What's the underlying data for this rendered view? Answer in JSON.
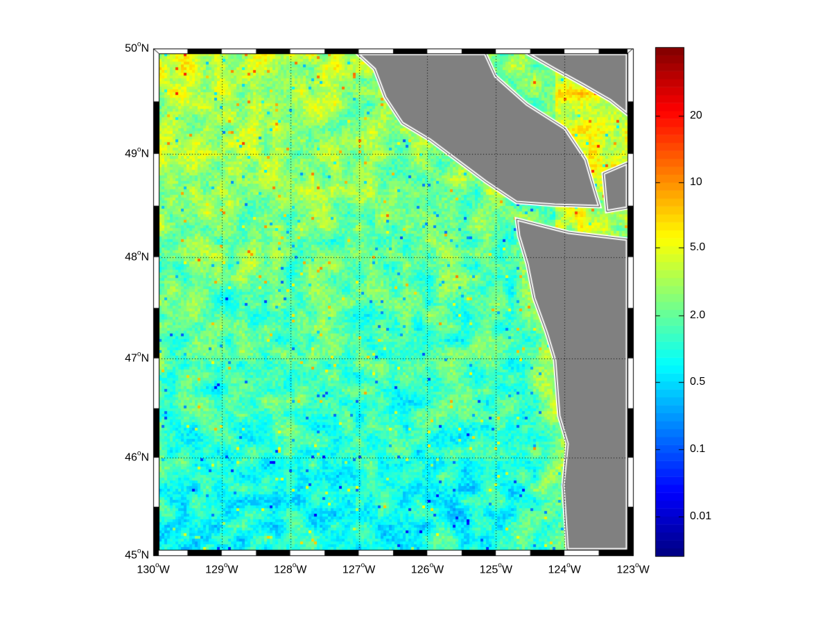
{
  "map": {
    "lon_range": [
      -130,
      -123
    ],
    "lat_range": [
      45,
      50
    ],
    "projection": "mercator",
    "grid": true,
    "colormap": "jet",
    "land_color": "#808080",
    "coast_color": "#ffffff",
    "lat_labels": [
      {
        "deg": "50",
        "hem": "N",
        "value": 50
      },
      {
        "deg": "49",
        "hem": "N",
        "value": 49
      },
      {
        "deg": "48",
        "hem": "N",
        "value": 48
      },
      {
        "deg": "47",
        "hem": "N",
        "value": 47
      },
      {
        "deg": "46",
        "hem": "N",
        "value": 46
      },
      {
        "deg": "45",
        "hem": "N",
        "value": 45
      }
    ],
    "lon_labels": [
      {
        "deg": "130",
        "hem": "W",
        "value": -130
      },
      {
        "deg": "129",
        "hem": "W",
        "value": -129
      },
      {
        "deg": "128",
        "hem": "W",
        "value": -128
      },
      {
        "deg": "127",
        "hem": "W",
        "value": -127
      },
      {
        "deg": "126",
        "hem": "W",
        "value": -126
      },
      {
        "deg": "125",
        "hem": "W",
        "value": -125
      },
      {
        "deg": "124",
        "hem": "W",
        "value": -124
      },
      {
        "deg": "123",
        "hem": "W",
        "value": -123
      }
    ]
  },
  "colorbar": {
    "scale": "log",
    "ticks": [
      "20",
      "10",
      "5.0",
      "2.0",
      "0.5",
      "0.1",
      "0.01"
    ]
  }
}
